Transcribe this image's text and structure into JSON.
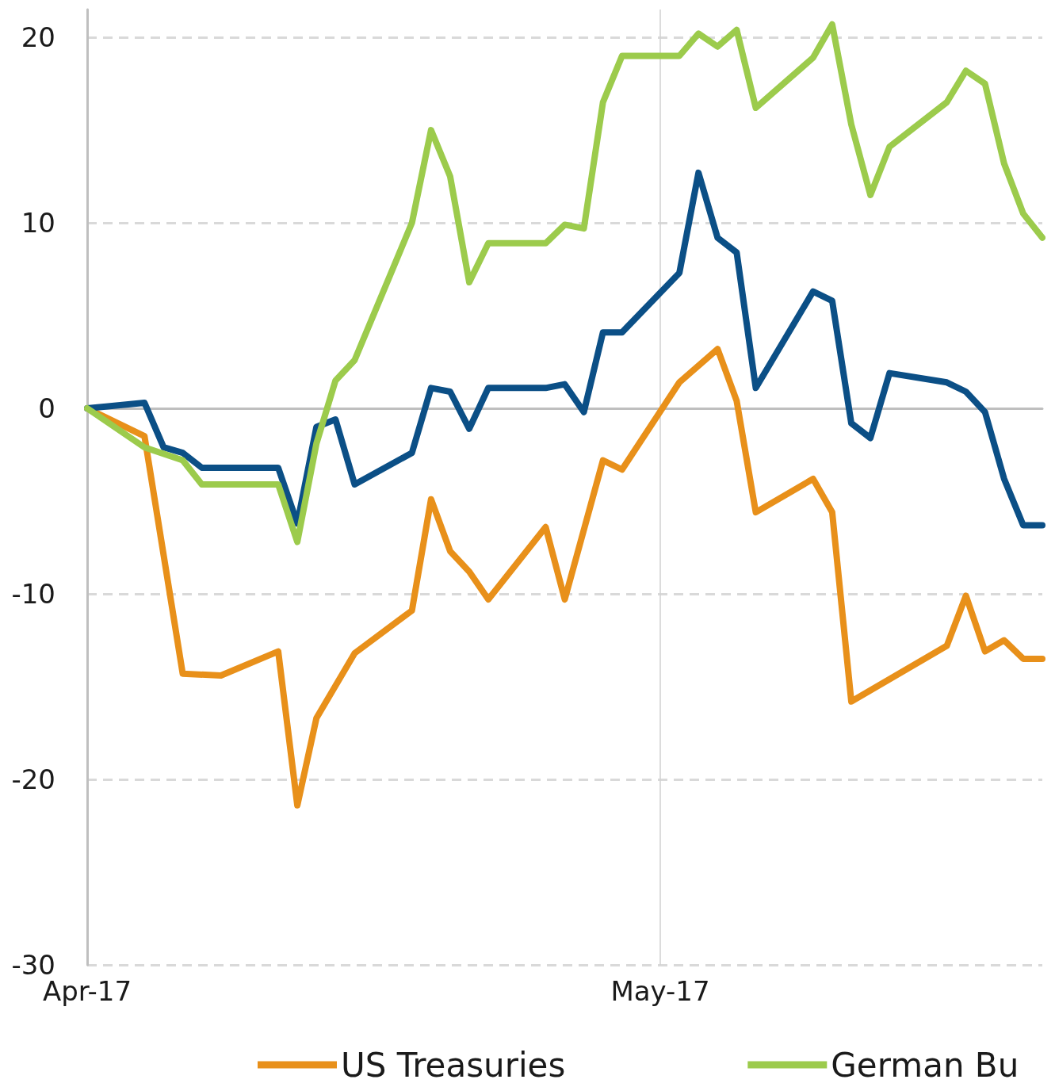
{
  "chart_data": {
    "type": "line",
    "xlim": [
      "2017-04-01",
      "2017-05-21"
    ],
    "xticks": [
      {
        "value": "2017-04-01",
        "label": "Apr-17"
      },
      {
        "value": "2017-05-01",
        "label": "May-17"
      }
    ],
    "ylim": [
      -30,
      21.5
    ],
    "yticks": [
      -30,
      -20,
      -10,
      0,
      10,
      20
    ],
    "grid": "y",
    "legend": "bottom",
    "line_style": "solid",
    "ref_lines": [
      {
        "axis": "y",
        "value": 0,
        "color": "#bfbfbf"
      },
      {
        "axis": "x",
        "value": "2017-05-01",
        "color": "#d0d0d0"
      }
    ],
    "series": [
      {
        "name": "US Treasuries",
        "color": "#e8901a",
        "x": [
          "2017-04-01",
          "2017-04-04",
          "2017-04-06",
          "2017-04-08",
          "2017-04-11",
          "2017-04-12",
          "2017-04-13",
          "2017-04-15",
          "2017-04-18",
          "2017-04-19",
          "2017-04-20",
          "2017-04-21",
          "2017-04-22",
          "2017-04-25",
          "2017-04-26",
          "2017-04-28",
          "2017-04-29",
          "2017-05-02",
          "2017-05-04",
          "2017-05-05",
          "2017-05-06",
          "2017-05-09",
          "2017-05-10",
          "2017-05-11",
          "2017-05-16",
          "2017-05-17",
          "2017-05-18",
          "2017-05-19",
          "2017-05-20",
          "2017-05-21"
        ],
        "values": [
          0,
          -1.5,
          -14.3,
          -14.4,
          -13.1,
          -21.4,
          -16.7,
          -13.2,
          -10.9,
          -4.9,
          -7.7,
          -8.8,
          -10.3,
          -6.4,
          -10.3,
          -2.8,
          -3.3,
          1.4,
          3.2,
          0.4,
          -5.6,
          -3.8,
          -5.6,
          -15.8,
          -12.8,
          -10.1,
          -13.1,
          -12.5,
          -13.5,
          -13.5
        ]
      },
      {
        "color": "#0b4f86",
        "x": [
          "2017-04-01",
          "2017-04-04",
          "2017-04-05",
          "2017-04-06",
          "2017-04-07",
          "2017-04-11",
          "2017-04-12",
          "2017-04-13",
          "2017-04-14",
          "2017-04-15",
          "2017-04-18",
          "2017-04-19",
          "2017-04-20",
          "2017-04-21",
          "2017-04-22",
          "2017-04-25",
          "2017-04-26",
          "2017-04-27",
          "2017-04-28",
          "2017-04-29",
          "2017-05-02",
          "2017-05-03",
          "2017-05-04",
          "2017-05-05",
          "2017-05-06",
          "2017-05-09",
          "2017-05-10",
          "2017-05-11",
          "2017-05-12",
          "2017-05-13",
          "2017-05-16",
          "2017-05-17",
          "2017-05-18",
          "2017-05-19",
          "2017-05-20",
          "2017-05-21"
        ],
        "values": [
          0,
          0.3,
          -2.1,
          -2.4,
          -3.2,
          -3.2,
          -6.2,
          -1.0,
          -0.6,
          -4.1,
          -2.4,
          1.1,
          0.9,
          -1.1,
          1.1,
          1.1,
          1.3,
          -0.2,
          4.1,
          4.1,
          7.3,
          12.7,
          9.2,
          8.4,
          1.1,
          6.3,
          5.8,
          -0.8,
          -1.6,
          1.9,
          1.4,
          0.9,
          -0.2,
          -3.8,
          -6.3,
          -6.3
        ]
      },
      {
        "name": "German Bu",
        "color": "#9ccb4c",
        "x": [
          "2017-04-01",
          "2017-04-04",
          "2017-04-06",
          "2017-04-07",
          "2017-04-11",
          "2017-04-12",
          "2017-04-13",
          "2017-04-14",
          "2017-04-15",
          "2017-04-18",
          "2017-04-19",
          "2017-04-20",
          "2017-04-21",
          "2017-04-22",
          "2017-04-25",
          "2017-04-26",
          "2017-04-27",
          "2017-04-28",
          "2017-04-29",
          "2017-05-02",
          "2017-05-03",
          "2017-05-04",
          "2017-05-05",
          "2017-05-06",
          "2017-05-09",
          "2017-05-10",
          "2017-05-11",
          "2017-05-12",
          "2017-05-13",
          "2017-05-16",
          "2017-05-17",
          "2017-05-18",
          "2017-05-19",
          "2017-05-20",
          "2017-05-21"
        ],
        "values": [
          0,
          -2.1,
          -2.8,
          -4.1,
          -4.1,
          -7.2,
          -1.9,
          1.5,
          2.6,
          10.0,
          15.0,
          12.5,
          6.8,
          8.9,
          8.9,
          9.9,
          9.7,
          16.5,
          19.0,
          19.0,
          20.2,
          19.5,
          20.4,
          16.2,
          18.9,
          20.7,
          15.3,
          11.5,
          14.1,
          16.5,
          18.2,
          17.5,
          13.2,
          10.5,
          9.2
        ]
      }
    ]
  }
}
